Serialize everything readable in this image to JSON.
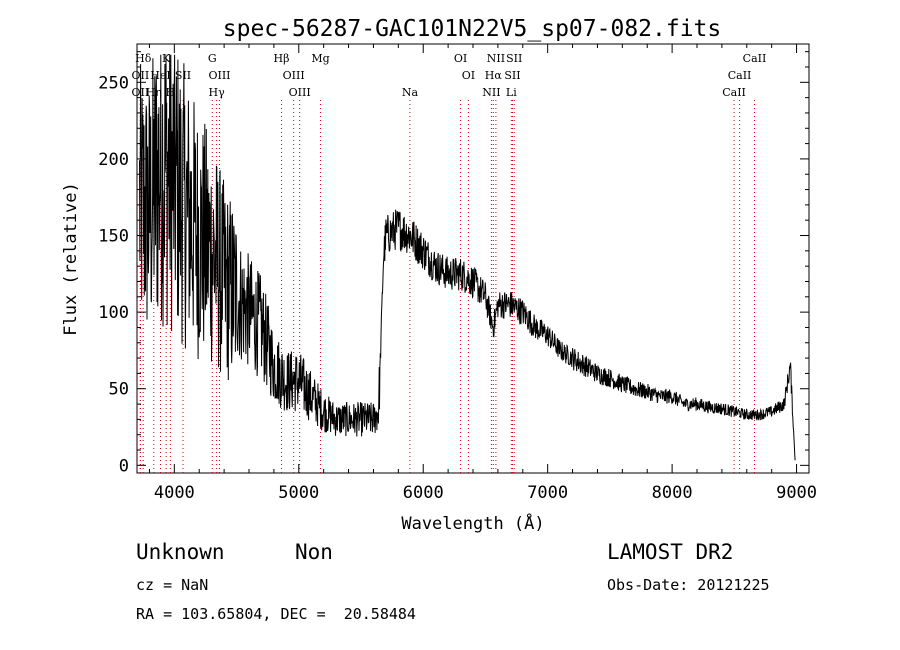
{
  "chart_data": {
    "type": "line",
    "title": "spec-56287-GAC101N22V5_sp07-082.fits",
    "xlabel": "Wavelength (Å)",
    "ylabel": "Flux (relative)",
    "xlim": [
      3700,
      9100
    ],
    "ylim": [
      -5,
      275
    ],
    "xticks": [
      4000,
      5000,
      6000,
      7000,
      8000,
      9000
    ],
    "yticks": [
      0,
      50,
      100,
      150,
      200,
      250
    ],
    "grid": false,
    "line_color": "#000000",
    "marker_color": "#cc0000",
    "series": [
      {
        "x": [
          3720,
          3800,
          3900,
          4000,
          4100,
          4200,
          4300,
          4400,
          4500,
          4600,
          4700,
          4800,
          4900,
          5000,
          5100,
          5200,
          5300,
          5400,
          5500,
          5600,
          5640,
          5660,
          5680,
          5700,
          5800,
          5900,
          6000,
          6100,
          6200,
          6300,
          6400,
          6500,
          6563,
          6600,
          6700,
          6800,
          6900,
          7000,
          7100,
          7200,
          7300,
          7400,
          7500,
          7600,
          7700,
          7800,
          7900,
          8000,
          8100,
          8200,
          8300,
          8400,
          8500,
          8600,
          8700,
          8800,
          8900,
          8950,
          8990
        ],
        "y": [
          170,
          165,
          200,
          185,
          165,
          150,
          140,
          120,
          110,
          100,
          90,
          65,
          55,
          55,
          45,
          35,
          30,
          30,
          30,
          30,
          35,
          80,
          135,
          150,
          155,
          150,
          140,
          130,
          125,
          125,
          120,
          110,
          90,
          105,
          105,
          100,
          90,
          85,
          75,
          70,
          65,
          60,
          57,
          53,
          50,
          48,
          45,
          45,
          40,
          40,
          38,
          37,
          35,
          33,
          33,
          35,
          40,
          65,
          0
        ]
      }
    ]
  },
  "line_markers": [
    {
      "label": "Hδ",
      "wavelength": 3750,
      "row": 0
    },
    {
      "label": "K",
      "wavelength": 3934,
      "row": 0
    },
    {
      "label": "G",
      "wavelength": 4305,
      "row": 0
    },
    {
      "label": "Hβ",
      "wavelength": 4861,
      "row": 0
    },
    {
      "label": "Mg",
      "wavelength": 5175,
      "row": 0
    },
    {
      "label": "OI",
      "wavelength": 6300,
      "row": 0
    },
    {
      "label": "NII",
      "wavelength": 6584,
      "row": 0
    },
    {
      "label": "SII",
      "wavelength": 6731,
      "row": 0
    },
    {
      "label": "CaII",
      "wavelength": 8662,
      "row": 0
    },
    {
      "label": "OII",
      "wavelength": 3727,
      "row": 1
    },
    {
      "label": "HeI",
      "wavelength": 3889,
      "row": 1
    },
    {
      "label": "SII",
      "wavelength": 4070,
      "row": 1
    },
    {
      "label": "OIII",
      "wavelength": 4363,
      "row": 1
    },
    {
      "label": "OIII",
      "wavelength": 4959,
      "row": 1
    },
    {
      "label": "OI",
      "wavelength": 6363,
      "row": 1
    },
    {
      "label": "Hα",
      "wavelength": 6563,
      "row": 1
    },
    {
      "label": "SII",
      "wavelength": 6717,
      "row": 1
    },
    {
      "label": "CaII",
      "wavelength": 8542,
      "row": 1
    },
    {
      "label": "OII",
      "wavelength": 3727,
      "row": 2
    },
    {
      "label": "Hη",
      "wavelength": 3835,
      "row": 2
    },
    {
      "label": "H",
      "wavelength": 3968,
      "row": 2
    },
    {
      "label": "Hγ",
      "wavelength": 4340,
      "row": 2
    },
    {
      "label": "OIII",
      "wavelength": 5007,
      "row": 2
    },
    {
      "label": "Na",
      "wavelength": 5893,
      "row": 2
    },
    {
      "label": "NII",
      "wavelength": 6548,
      "row": 2
    },
    {
      "label": "Li",
      "wavelength": 6708,
      "row": 2
    },
    {
      "label": "CaII",
      "wavelength": 8498,
      "row": 2
    }
  ],
  "info": {
    "class": "Unknown",
    "subclass": "Non",
    "survey": "LAMOST DR2",
    "cz": "cz = NaN",
    "obs_date": "Obs-Date: 20121225",
    "coords": "RA = 103.65804, DEC =  20.58484"
  }
}
